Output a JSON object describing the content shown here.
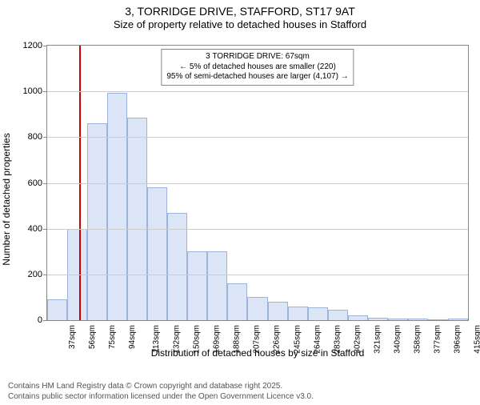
{
  "title": "3, TORRIDGE DRIVE, STAFFORD, ST17 9AT",
  "subtitle": "Size of property relative to detached houses in Stafford",
  "chart": {
    "type": "histogram",
    "ylabel": "Number of detached properties",
    "xlabel": "Distribution of detached houses by size in Stafford",
    "ylim": [
      0,
      1200
    ],
    "ytick_step": 200,
    "yticks": [
      0,
      200,
      400,
      600,
      800,
      1000,
      1200
    ],
    "xticks": [
      "37sqm",
      "56sqm",
      "75sqm",
      "94sqm",
      "113sqm",
      "132sqm",
      "150sqm",
      "169sqm",
      "188sqm",
      "207sqm",
      "226sqm",
      "245sqm",
      "264sqm",
      "283sqm",
      "302sqm",
      "321sqm",
      "340sqm",
      "358sqm",
      "377sqm",
      "396sqm",
      "415sqm"
    ],
    "values": [
      90,
      400,
      860,
      995,
      885,
      580,
      470,
      300,
      300,
      160,
      100,
      80,
      60,
      55,
      45,
      20,
      10,
      8,
      8,
      5,
      8
    ],
    "bar_fill": "#dbe5f6",
    "bar_stroke": "#9db3d9",
    "background_color": "#ffffff",
    "grid_color": "#cccccc",
    "axis_color": "#888888",
    "marker_line": {
      "value_sqm": 67,
      "color": "#cc0000",
      "width": 2
    },
    "annotation": {
      "line1": "3 TORRIDGE DRIVE: 67sqm",
      "line2": "← 5% of detached houses are smaller (220)",
      "line3": "95% of semi-detached houses are larger (4,107) →",
      "border_color": "#888888",
      "font_size": 10
    }
  },
  "footer": {
    "line1": "Contains HM Land Registry data © Crown copyright and database right 2025.",
    "line2": "Contains public sector information licensed under the Open Government Licence v3.0."
  }
}
